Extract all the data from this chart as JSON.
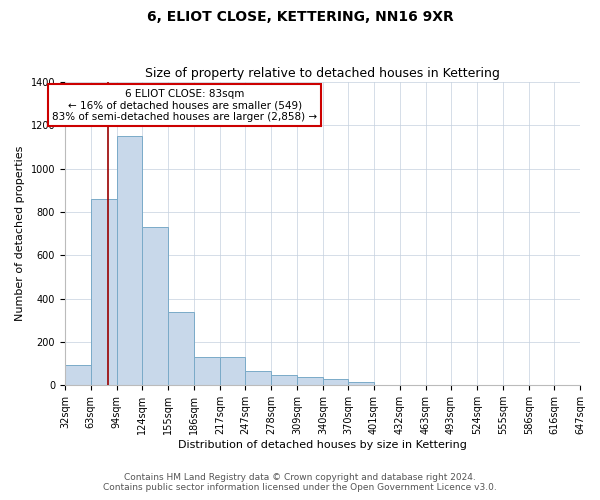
{
  "title": "6, ELIOT CLOSE, KETTERING, NN16 9XR",
  "subtitle": "Size of property relative to detached houses in Kettering",
  "xlabel": "Distribution of detached houses by size in Kettering",
  "ylabel": "Number of detached properties",
  "bar_color": "#c8d8ea",
  "bar_edge_color": "#7aaac8",
  "bins": [
    32,
    63,
    94,
    124,
    155,
    186,
    217,
    247,
    278,
    309,
    340,
    370,
    401,
    432,
    463,
    493,
    524,
    555,
    586,
    616,
    647
  ],
  "counts": [
    95,
    860,
    1150,
    730,
    340,
    130,
    130,
    65,
    45,
    40,
    30,
    15,
    0,
    0,
    0,
    0,
    0,
    0,
    0,
    0
  ],
  "property_size": 83,
  "property_label": "6 ELIOT CLOSE: 83sqm",
  "annotation_line1": "← 16% of detached houses are smaller (549)",
  "annotation_line2": "83% of semi-detached houses are larger (2,858) →",
  "vline_color": "#990000",
  "annotation_box_edgecolor": "#cc0000",
  "ylim": [
    0,
    1400
  ],
  "yticks": [
    0,
    200,
    400,
    600,
    800,
    1000,
    1200,
    1400
  ],
  "footnote1": "Contains HM Land Registry data © Crown copyright and database right 2024.",
  "footnote2": "Contains public sector information licensed under the Open Government Licence v3.0.",
  "title_fontsize": 10,
  "subtitle_fontsize": 9,
  "xlabel_fontsize": 8,
  "ylabel_fontsize": 8,
  "tick_fontsize": 7,
  "annotation_fontsize": 7.5,
  "footnote_fontsize": 6.5
}
